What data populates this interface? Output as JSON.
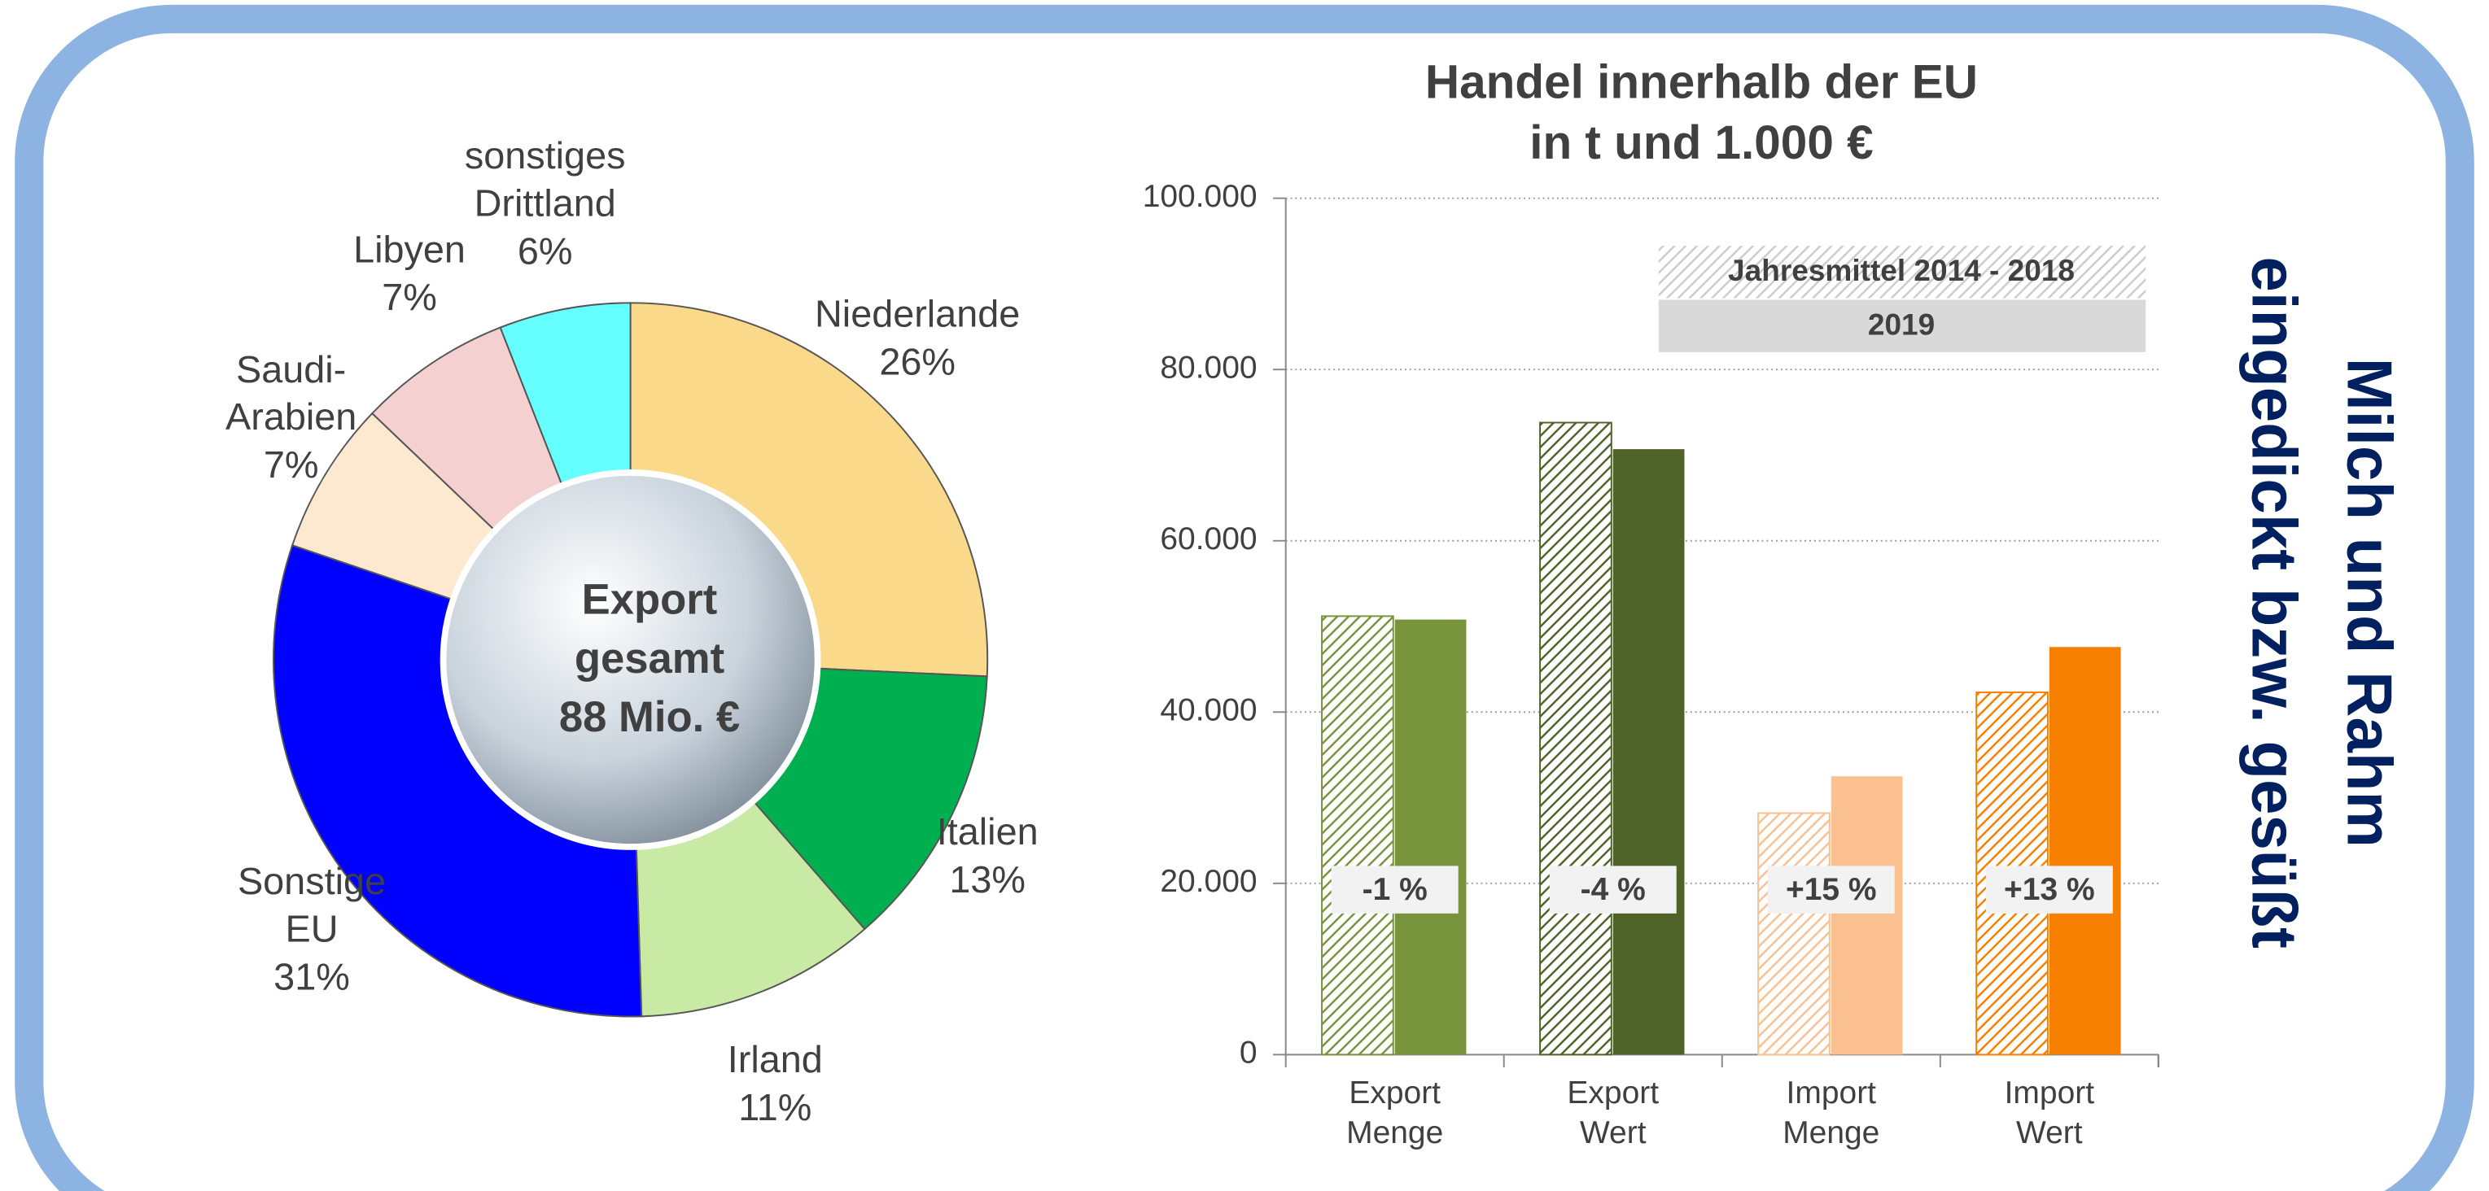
{
  "page_title": [
    "Milch und Rahm",
    "eingedickt bzw. gesüßt"
  ],
  "chart_data": [
    {
      "type": "pie",
      "donut": true,
      "center_label": [
        "Export",
        "gesamt",
        "88 Mio. €"
      ],
      "categories": [
        "Niederlande",
        "Italien",
        "Irland",
        "Sonstige EU",
        "Saudi-Arabien",
        "Libyen",
        "sonstiges Drittland"
      ],
      "values": [
        26,
        13,
        11,
        31,
        7,
        7,
        6
      ],
      "value_labels": [
        "26%",
        "13%",
        "11%",
        "31%",
        "7%",
        "7%",
        "6%"
      ],
      "colors": [
        "#fad98a",
        "#00b050",
        "#c9eaa5",
        "#0000ff",
        "#fde9d0",
        "#f4d0d0",
        "#66ffff"
      ]
    },
    {
      "type": "bar",
      "title": [
        "Handel innerhalb der EU",
        "in t und 1.000 €"
      ],
      "categories": [
        "Export Menge",
        "Export Wert",
        "Import Menge",
        "Import Wert"
      ],
      "series": [
        {
          "name": "Jahresmittel 2014 - 2018",
          "hatched": true,
          "color": [
            "#77933c",
            "#4f6228",
            "#fac090",
            "#f77f00"
          ],
          "values": [
            51200,
            73800,
            28200,
            42300
          ]
        },
        {
          "name": "2019",
          "color": [
            "#77933c",
            "#4f6228",
            "#fac090",
            "#f77f00"
          ],
          "values": [
            50800,
            70700,
            32500,
            47600
          ]
        }
      ],
      "annotations": [
        "-1 %",
        "-4 %",
        "+15 %",
        "+13 %"
      ],
      "ylim": [
        0,
        100000
      ],
      "yticks": [
        0,
        {
          "value": 20000,
          "label": "20.000"
        },
        {
          "value": 40000,
          "label": "40.000"
        },
        {
          "value": 60000,
          "label": "60.000"
        },
        {
          "value": 80000,
          "label": "80.000"
        },
        {
          "value": 100000,
          "label": "100.000"
        }
      ],
      "grid": true
    }
  ]
}
